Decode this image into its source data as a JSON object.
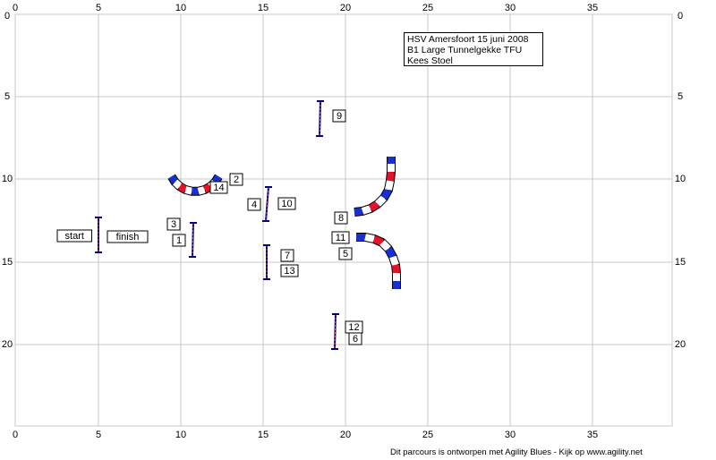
{
  "course": {
    "lines": [
      "HSV Amersfoort 15 juni 2008",
      "B1 Large Tunnelgekke TFU",
      "Kees Stoel"
    ]
  },
  "grid": {
    "x_ticks": [
      "0",
      "5",
      "10",
      "15",
      "20",
      "25",
      "30",
      "35"
    ],
    "y_ticks": [
      "0",
      "5",
      "10",
      "15",
      "20"
    ]
  },
  "start_label": "start",
  "finish_label": "finish",
  "obstacles": [
    {
      "label": "1"
    },
    {
      "label": "2"
    },
    {
      "label": "3"
    },
    {
      "label": "4"
    },
    {
      "label": "5"
    },
    {
      "label": "6"
    },
    {
      "label": "7"
    },
    {
      "label": "8"
    },
    {
      "label": "9"
    },
    {
      "label": "10"
    },
    {
      "label": "11"
    },
    {
      "label": "12"
    },
    {
      "label": "13"
    },
    {
      "label": "14"
    }
  ],
  "footer": "Dit parcours is ontworpen met Agility Blues - Kijk op www.agility.net",
  "colors": {
    "grid": "#c8c8c8",
    "tunnel_red": "#e8102a",
    "tunnel_blue": "#1a2fd0",
    "pole": "#000080",
    "jump_bar": "#d04040"
  }
}
